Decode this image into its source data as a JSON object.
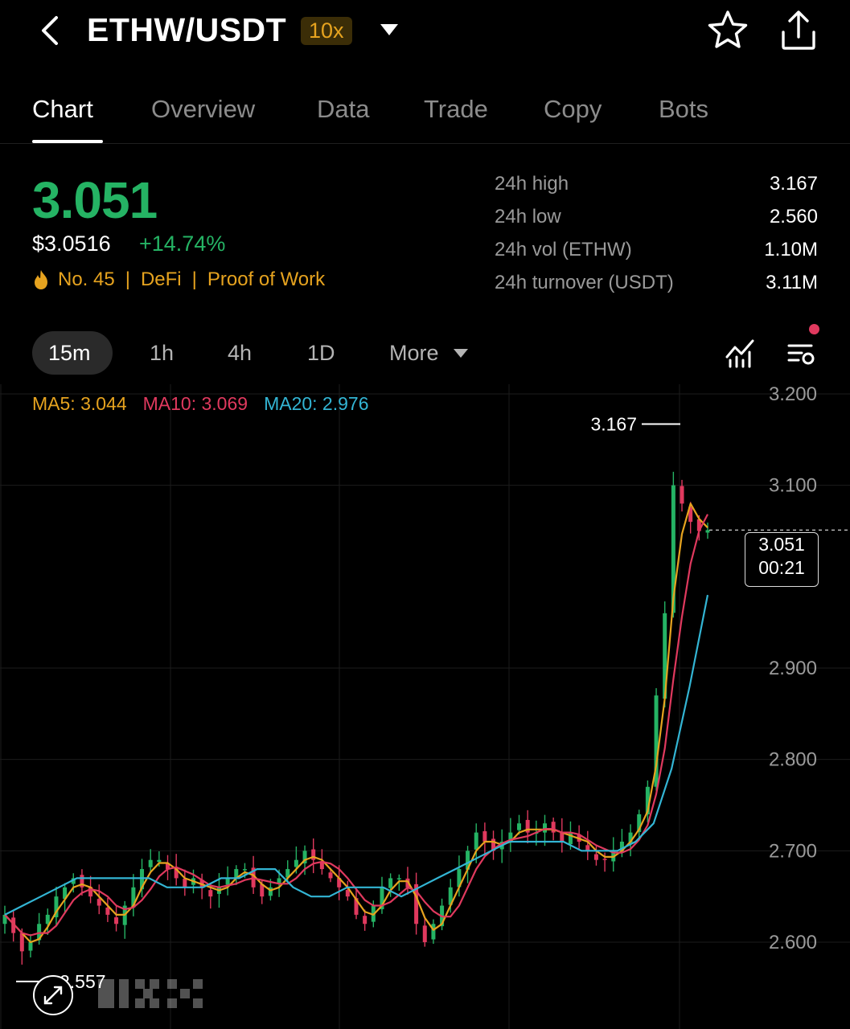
{
  "header": {
    "pair": "ETHW/USDT",
    "leverage": "10x",
    "icons": [
      "chevron-left-icon",
      "caret-down-icon",
      "star-icon",
      "share-icon"
    ]
  },
  "tabs": [
    {
      "label": "Chart",
      "active": true
    },
    {
      "label": "Overview",
      "active": false
    },
    {
      "label": "Data",
      "active": false
    },
    {
      "label": "Trade",
      "active": false
    },
    {
      "label": "Copy",
      "active": false
    },
    {
      "label": "Bots",
      "active": false
    }
  ],
  "price": {
    "last": "3.051",
    "usd": "$3.0516",
    "change": "+14.74%",
    "rank_icon": "flame-icon",
    "rank": "No. 45",
    "tag1": "DeFi",
    "tag2": "Proof of Work",
    "separator": "|"
  },
  "stats": [
    {
      "label": "24h high",
      "value": "3.167"
    },
    {
      "label": "24h low",
      "value": "2.560"
    },
    {
      "label": "24h vol (ETHW)",
      "value": "1.10M"
    },
    {
      "label": "24h turnover (USDT)",
      "value": "3.11M"
    }
  ],
  "timeframes": {
    "items": [
      "15m",
      "1h",
      "4h",
      "1D"
    ],
    "selected": "15m",
    "more": "More"
  },
  "toolbar_icons": [
    "indicators-icon",
    "chart-settings-icon"
  ],
  "colors": {
    "up": "#25b364",
    "down": "#e0395e",
    "accent": "#e6a31f",
    "ma5": "#e6a31f",
    "ma10": "#e0395e",
    "ma20": "#33b5d4"
  },
  "chart_data": {
    "type": "candlestick",
    "interval": "15m",
    "y_ticks": [
      "3.200",
      "3.100",
      "2.900",
      "2.800",
      "2.700",
      "2.600"
    ],
    "ylim": [
      2.54,
      3.2
    ],
    "ma_legend": {
      "ma5": "MA5: 3.044",
      "ma10": "MA10: 3.069",
      "ma20": "MA20: 2.976"
    },
    "high_label": "3.167",
    "high": 3.167,
    "low_label": "2.557",
    "low": 2.557,
    "current": {
      "price": "3.051",
      "countdown": "00:21",
      "value": 3.051
    },
    "closes": [
      2.63,
      2.61,
      2.59,
      2.6,
      2.62,
      2.63,
      2.65,
      2.66,
      2.67,
      2.66,
      2.65,
      2.64,
      2.63,
      2.62,
      2.64,
      2.66,
      2.68,
      2.69,
      2.69,
      2.68,
      2.67,
      2.66,
      2.67,
      2.66,
      2.65,
      2.66,
      2.67,
      2.68,
      2.68,
      2.66,
      2.65,
      2.66,
      2.67,
      2.68,
      2.69,
      2.7,
      2.69,
      2.68,
      2.67,
      2.66,
      2.65,
      2.63,
      2.62,
      2.64,
      2.66,
      2.67,
      2.67,
      2.66,
      2.62,
      2.6,
      2.62,
      2.64,
      2.66,
      2.68,
      2.7,
      2.72,
      2.71,
      2.7,
      2.71,
      2.72,
      2.73,
      2.72,
      2.72,
      2.73,
      2.72,
      2.71,
      2.72,
      2.71,
      2.7,
      2.69,
      2.69,
      2.7,
      2.71,
      2.72,
      2.74,
      2.77,
      2.87,
      2.96,
      3.1,
      3.08,
      3.06,
      3.05,
      3.051
    ],
    "ma20_points": [
      2.63,
      2.64,
      2.65,
      2.66,
      2.67,
      2.67,
      2.67,
      2.67,
      2.67,
      2.66,
      2.66,
      2.66,
      2.67,
      2.67,
      2.68,
      2.68,
      2.66,
      2.65,
      2.65,
      2.66,
      2.66,
      2.66,
      2.65,
      2.66,
      2.67,
      2.68,
      2.69,
      2.7,
      2.71,
      2.71,
      2.71,
      2.71,
      2.7,
      2.7,
      2.7,
      2.71,
      2.73,
      2.79,
      2.88,
      2.98
    ]
  }
}
